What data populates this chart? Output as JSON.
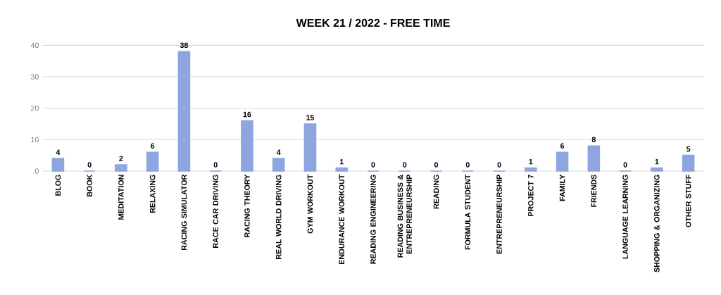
{
  "chart_data": {
    "type": "bar",
    "title": "WEEK 21 / 2022 - FREE TIME",
    "categories": [
      "BLOG",
      "BOOK",
      "MEDITATION",
      "RELAXING",
      "RACING SIMULATOR",
      "RACE CAR DRIVING",
      "RACING THEORY",
      "REAL WORLD DRIVING",
      "GYM WORKOUT",
      "ENDURANCE WORKOUT",
      "READING ENGINEERING",
      "READING BUSINESS & ENTREPRENEURSHIP",
      "READING",
      "FORMULA STUDENT",
      "ENTREPRENEURSHIP",
      "PROJECT 7",
      "FAMILY",
      "FRIENDS",
      "LANGUAGE LEARNING",
      "SHOPPING & ORGANIZING",
      "OTHER STUFF"
    ],
    "values": [
      4,
      0,
      2,
      6,
      38,
      0,
      16,
      4,
      15,
      1,
      0,
      0,
      0,
      0,
      0,
      1,
      6,
      8,
      0,
      1,
      5
    ],
    "color": "#8fa5e0",
    "ylim": [
      0,
      40
    ],
    "yticks": [
      0,
      10,
      20,
      30,
      40
    ],
    "grid": "y",
    "data_labels": true
  }
}
